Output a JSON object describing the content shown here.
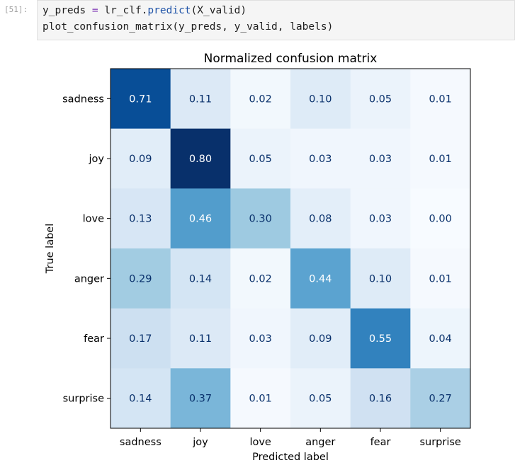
{
  "cell": {
    "prompt": "[51]:",
    "line1": {
      "a": "y_preds ",
      "op": "=",
      "b": " lr_clf.",
      "fn": "predict",
      "c": "(X_valid)"
    },
    "line2": "plot_confusion_matrix(y_preds, y_valid, labels)"
  },
  "chart_data": {
    "type": "heatmap",
    "title": "Normalized confusion matrix",
    "xlabel": "Predicted label",
    "ylabel": "True label",
    "colormap": "Blues",
    "vmin": 0,
    "vmax": 0.8,
    "labels": [
      "sadness",
      "joy",
      "love",
      "anger",
      "fear",
      "surprise"
    ],
    "matrix": [
      [
        0.71,
        0.11,
        0.02,
        0.1,
        0.05,
        0.01
      ],
      [
        0.09,
        0.8,
        0.05,
        0.03,
        0.03,
        0.01
      ],
      [
        0.13,
        0.46,
        0.3,
        0.08,
        0.03,
        0.0
      ],
      [
        0.29,
        0.14,
        0.02,
        0.44,
        0.1,
        0.01
      ],
      [
        0.17,
        0.11,
        0.03,
        0.09,
        0.55,
        0.04
      ],
      [
        0.14,
        0.37,
        0.01,
        0.05,
        0.16,
        0.27
      ]
    ]
  }
}
